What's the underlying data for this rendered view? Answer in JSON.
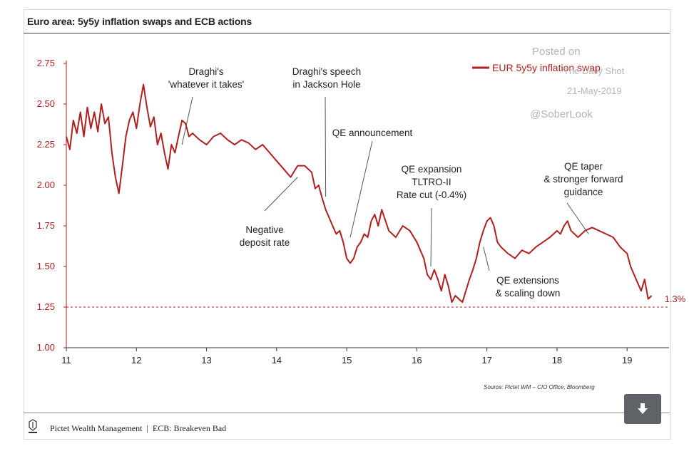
{
  "title": "Euro area: 5y5y inflation swaps and ECB actions",
  "footer": {
    "company": "Pictet Wealth Management",
    "separator": "|",
    "section": "ECB: Breakeven Bad"
  },
  "watermark": {
    "line1": "Posted on",
    "line2": "The Daily Shot",
    "line3": "21-May-2019",
    "line4": "@SoberLook"
  },
  "source": "Source: Pictet WM – CIO Office, Bloomberg",
  "download_icon": "download-arrow-icon",
  "colors": {
    "series": "#b01e1e",
    "axis": "#b01e1e",
    "text": "#222222"
  },
  "chart_data": {
    "type": "line",
    "title": "Euro area: 5y5y inflation swaps and ECB actions",
    "xlim": [
      11,
      19.7
    ],
    "ylim": [
      1.0,
      2.75
    ],
    "xticks": [
      "11",
      "12",
      "13",
      "14",
      "15",
      "16",
      "17",
      "18",
      "19"
    ],
    "yticks": [
      "1.00",
      "1.25",
      "1.50",
      "1.75",
      "2.00",
      "2.25",
      "2.50",
      "2.75"
    ],
    "legend": "top-right",
    "reference_line": {
      "y": 1.25,
      "style": "dashed"
    },
    "end_label": "1.3%",
    "series": [
      {
        "name": "EUR 5y5y inflation swap",
        "x": [
          11.0,
          11.05,
          11.1,
          11.15,
          11.2,
          11.25,
          11.3,
          11.35,
          11.4,
          11.45,
          11.5,
          11.55,
          11.6,
          11.65,
          11.7,
          11.75,
          11.8,
          11.85,
          11.9,
          11.95,
          12.0,
          12.05,
          12.1,
          12.15,
          12.2,
          12.25,
          12.3,
          12.35,
          12.4,
          12.45,
          12.5,
          12.55,
          12.6,
          12.65,
          12.7,
          12.75,
          12.8,
          12.9,
          13.0,
          13.1,
          13.2,
          13.3,
          13.4,
          13.5,
          13.6,
          13.7,
          13.8,
          13.9,
          14.0,
          14.1,
          14.2,
          14.3,
          14.4,
          14.5,
          14.55,
          14.6,
          14.65,
          14.7,
          14.75,
          14.8,
          14.85,
          14.9,
          14.95,
          15.0,
          15.05,
          15.1,
          15.15,
          15.2,
          15.25,
          15.3,
          15.35,
          15.4,
          15.45,
          15.5,
          15.6,
          15.7,
          15.8,
          15.9,
          16.0,
          16.05,
          16.1,
          16.15,
          16.2,
          16.25,
          16.3,
          16.35,
          16.4,
          16.45,
          16.5,
          16.55,
          16.6,
          16.65,
          16.7,
          16.75,
          16.8,
          16.85,
          16.9,
          16.95,
          17.0,
          17.05,
          17.1,
          17.15,
          17.2,
          17.3,
          17.4,
          17.5,
          17.6,
          17.7,
          17.8,
          17.9,
          18.0,
          18.05,
          18.1,
          18.15,
          18.2,
          18.3,
          18.4,
          18.5,
          18.6,
          18.7,
          18.8,
          18.9,
          19.0,
          19.05,
          19.1,
          19.15,
          19.2,
          19.25,
          19.3,
          19.35
        ],
        "y": [
          2.3,
          2.22,
          2.4,
          2.32,
          2.45,
          2.3,
          2.48,
          2.35,
          2.45,
          2.33,
          2.5,
          2.38,
          2.42,
          2.2,
          2.05,
          1.95,
          2.12,
          2.3,
          2.4,
          2.45,
          2.35,
          2.5,
          2.62,
          2.48,
          2.36,
          2.42,
          2.25,
          2.32,
          2.2,
          2.1,
          2.25,
          2.2,
          2.3,
          2.4,
          2.38,
          2.3,
          2.32,
          2.28,
          2.25,
          2.3,
          2.32,
          2.28,
          2.25,
          2.28,
          2.26,
          2.22,
          2.25,
          2.2,
          2.15,
          2.1,
          2.05,
          2.12,
          2.12,
          2.08,
          1.98,
          2.0,
          1.92,
          1.85,
          1.8,
          1.75,
          1.7,
          1.72,
          1.65,
          1.55,
          1.52,
          1.55,
          1.62,
          1.65,
          1.7,
          1.68,
          1.78,
          1.82,
          1.75,
          1.85,
          1.72,
          1.68,
          1.75,
          1.72,
          1.65,
          1.6,
          1.55,
          1.45,
          1.42,
          1.48,
          1.42,
          1.35,
          1.45,
          1.38,
          1.28,
          1.32,
          1.3,
          1.28,
          1.35,
          1.42,
          1.48,
          1.55,
          1.65,
          1.72,
          1.78,
          1.8,
          1.75,
          1.65,
          1.62,
          1.58,
          1.55,
          1.6,
          1.58,
          1.62,
          1.65,
          1.68,
          1.72,
          1.7,
          1.75,
          1.78,
          1.72,
          1.68,
          1.72,
          1.74,
          1.72,
          1.7,
          1.68,
          1.62,
          1.58,
          1.5,
          1.45,
          1.4,
          1.35,
          1.42,
          1.3,
          1.32
        ]
      }
    ],
    "annotations": [
      {
        "lines": [
          "Draghi's",
          "'whatever it takes'"
        ],
        "x": 12.65,
        "y": 2.25
      },
      {
        "lines": [
          "Draghi's speech",
          "in Jackson Hole"
        ],
        "x": 14.7,
        "y": 1.93
      },
      {
        "lines": [
          "QE announcement"
        ],
        "x": 15.05,
        "y": 1.68
      },
      {
        "lines": [
          "QE expansion",
          "TLTRO-II",
          "Rate cut (-0.4%)"
        ],
        "x": 16.2,
        "y": 1.5
      },
      {
        "lines": [
          "QE taper",
          "& stronger forward",
          "guidance"
        ],
        "x": 18.45,
        "y": 1.7
      },
      {
        "lines": [
          "Negative",
          "deposit rate"
        ],
        "x": 14.3,
        "y": 2.05
      },
      {
        "lines": [
          "QE extensions",
          "& scaling down"
        ],
        "x": 16.95,
        "y": 1.62
      }
    ]
  }
}
